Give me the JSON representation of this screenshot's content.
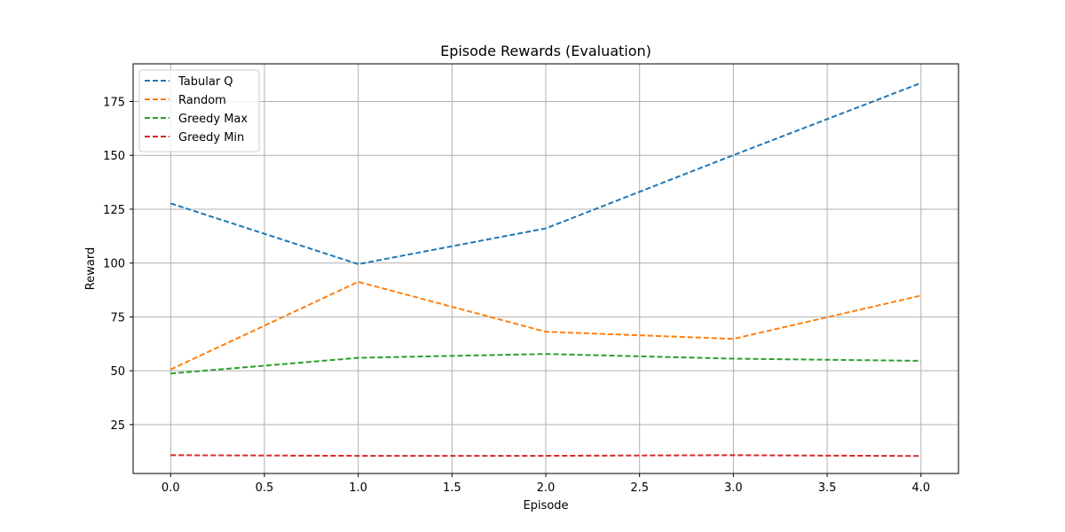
{
  "chart_data": {
    "type": "line",
    "title": "Episode Rewards (Evaluation)",
    "xlabel": "Episode",
    "ylabel": "Reward",
    "x": [
      0,
      1,
      2,
      3,
      4
    ],
    "xlim": [
      -0.2,
      4.2
    ],
    "ylim": [
      2.3,
      192.5
    ],
    "x_ticks": [
      0.0,
      0.5,
      1.0,
      1.5,
      2.0,
      2.5,
      3.0,
      3.5,
      4.0
    ],
    "x_tick_labels": [
      "0.0",
      "0.5",
      "1.0",
      "1.5",
      "2.0",
      "2.5",
      "3.0",
      "3.5",
      "4.0"
    ],
    "y_ticks": [
      25,
      50,
      75,
      100,
      125,
      150,
      175
    ],
    "y_tick_labels": [
      "25",
      "50",
      "75",
      "100",
      "125",
      "150",
      "175"
    ],
    "grid": true,
    "legend_position": "top-left",
    "line_style": "dashed",
    "series": [
      {
        "name": "Tabular Q",
        "color": "#1f77b4",
        "values": [
          127.7,
          99.5,
          116.1,
          150.1,
          183.6
        ]
      },
      {
        "name": "Random",
        "color": "#ff7f0e",
        "values": [
          50.6,
          91.3,
          68.1,
          64.8,
          84.9
        ]
      },
      {
        "name": "Greedy Max",
        "color": "#2ca02c",
        "values": [
          48.7,
          56.0,
          57.8,
          55.6,
          54.6
        ]
      },
      {
        "name": "Greedy Min",
        "color": "#d62728",
        "values": [
          10.8,
          10.5,
          10.5,
          10.8,
          10.4
        ]
      }
    ]
  }
}
